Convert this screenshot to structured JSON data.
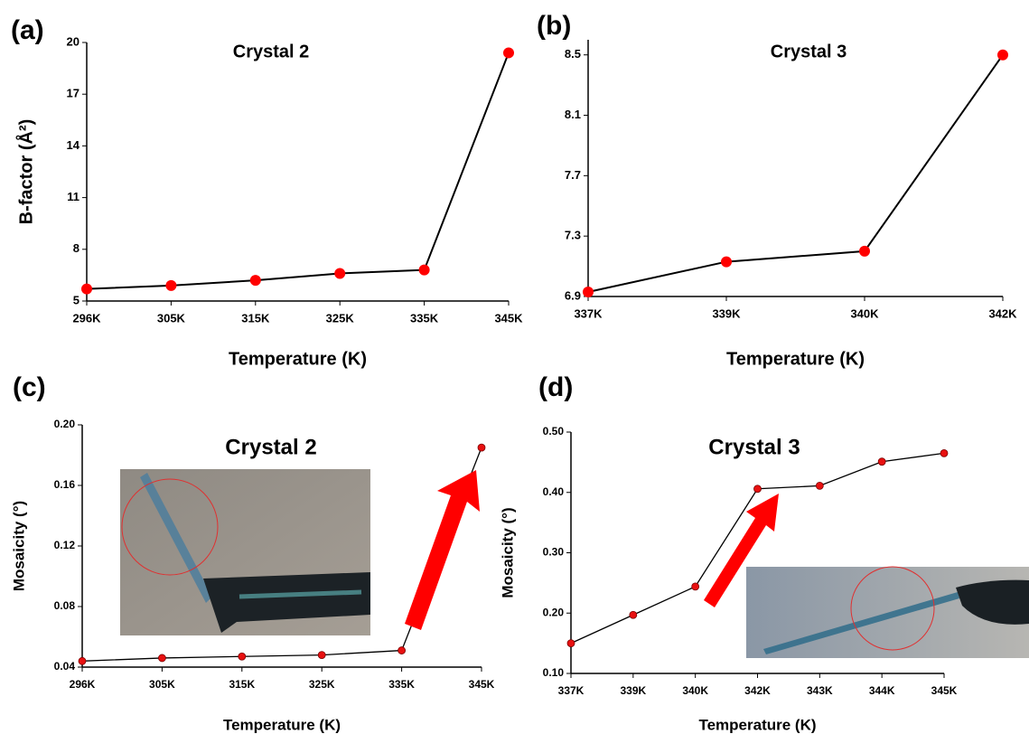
{
  "chart_data": [
    {
      "type": "line",
      "panel_label": "(a)",
      "title": "Crystal 2",
      "x_label": "Temperature (K)",
      "y_label": "B-factor (Å²)",
      "categories": [
        "296K",
        "305K",
        "315K",
        "325K",
        "335K",
        "345K"
      ],
      "values": [
        5.7,
        5.9,
        6.2,
        6.6,
        6.8,
        19.4
      ],
      "color": "#ff0000",
      "ylim": [
        5,
        20
      ],
      "yticks": [
        5,
        8,
        11,
        14,
        17,
        20
      ]
    },
    {
      "type": "line",
      "panel_label": "(b)",
      "title": "Crystal 3",
      "x_label": "Temperature (K)",
      "categories": [
        "337K",
        "339K",
        "340K",
        "342K"
      ],
      "values": [
        6.93,
        7.13,
        7.2,
        8.5
      ],
      "color": "#ff0000",
      "ylim": [
        6.9,
        8.6
      ],
      "yticks": [
        6.9,
        7.3,
        7.7,
        8.1,
        8.5
      ]
    },
    {
      "type": "line",
      "panel_label": "(c)",
      "title": "Crystal 2",
      "x_label": "Temperature (K)",
      "y_label": "Mosaicity (°)",
      "categories": [
        "296K",
        "305K",
        "315K",
        "325K",
        "335K",
        "345K"
      ],
      "values": [
        0.044,
        0.046,
        0.047,
        0.048,
        0.051,
        0.185
      ],
      "color": "#e81010",
      "ylim": [
        0.04,
        0.2
      ],
      "yticks": [
        0.04,
        0.08,
        0.12,
        0.16,
        {
          "value": 0.2,
          "label": "0.20"
        }
      ]
    },
    {
      "type": "line",
      "panel_label": "(d)",
      "title": "Crystal 3",
      "x_label": "Temperature (K)",
      "y_label": "Mosaicity (°)",
      "categories": [
        "337K",
        "339K",
        "340K",
        "342K",
        "343K",
        "344K",
        "345K"
      ],
      "values": [
        0.15,
        0.197,
        0.244,
        0.406,
        0.411,
        0.451,
        0.465
      ],
      "color": "#e81010",
      "ylim": [
        0.1,
        0.5
      ],
      "yticks": [
        {
          "value": 0.1,
          "label": "0.10"
        },
        {
          "value": 0.2,
          "label": "0.20"
        },
        {
          "value": 0.3,
          "label": "0.30"
        },
        {
          "value": 0.4,
          "label": "0.40"
        },
        {
          "value": 0.5,
          "label": "0.50"
        }
      ]
    }
  ]
}
